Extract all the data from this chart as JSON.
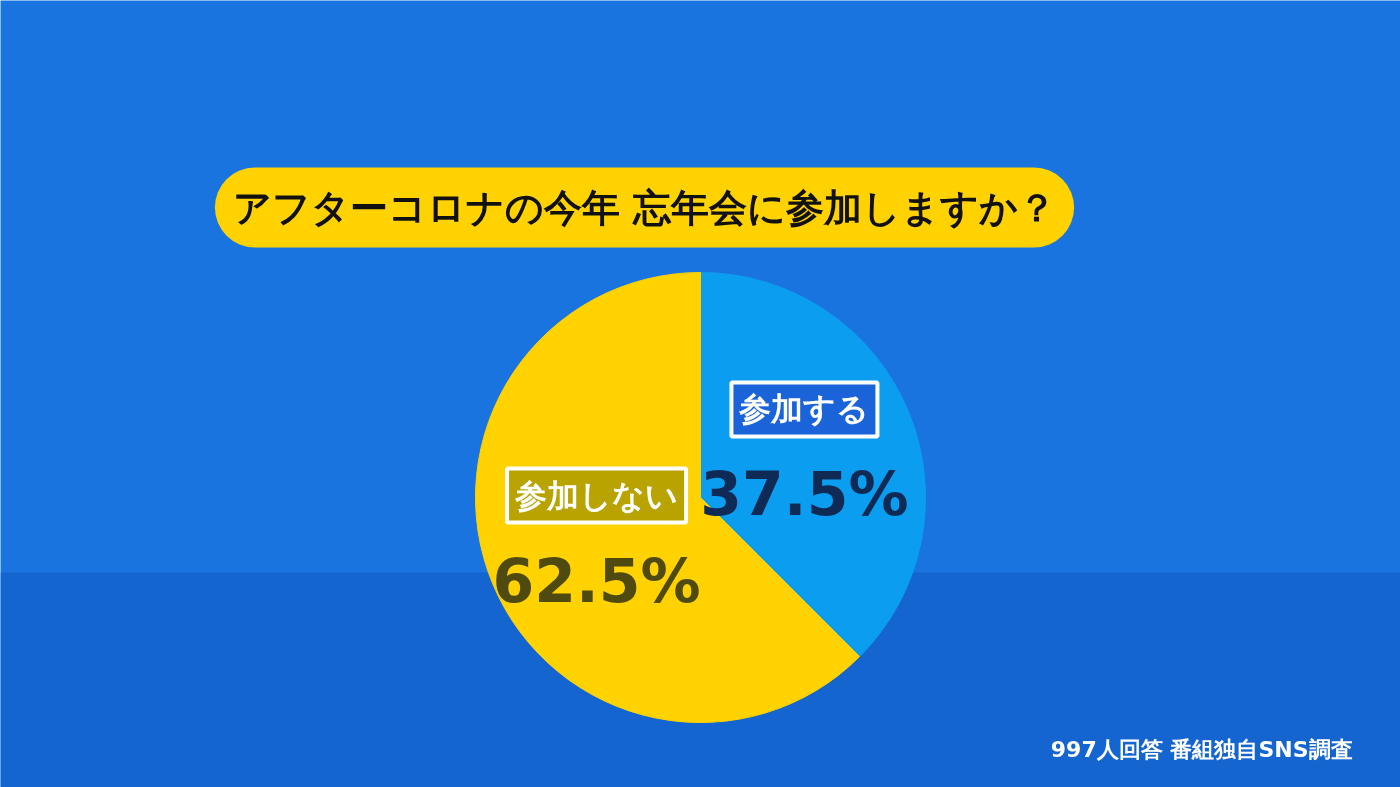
{
  "chart_data": {
    "type": "pie",
    "title": "アフターコロナの今年 忘年会に参加しますか？",
    "categories": [
      "参加する",
      "参加しない"
    ],
    "values": [
      37.5,
      62.5
    ],
    "colors": [
      "#0b9ef0",
      "#ffd200"
    ],
    "value_labels": [
      "37.5%",
      "62.5%"
    ],
    "legend": false,
    "annotations": [
      "997人回答 番組独自SNS調査"
    ]
  }
}
